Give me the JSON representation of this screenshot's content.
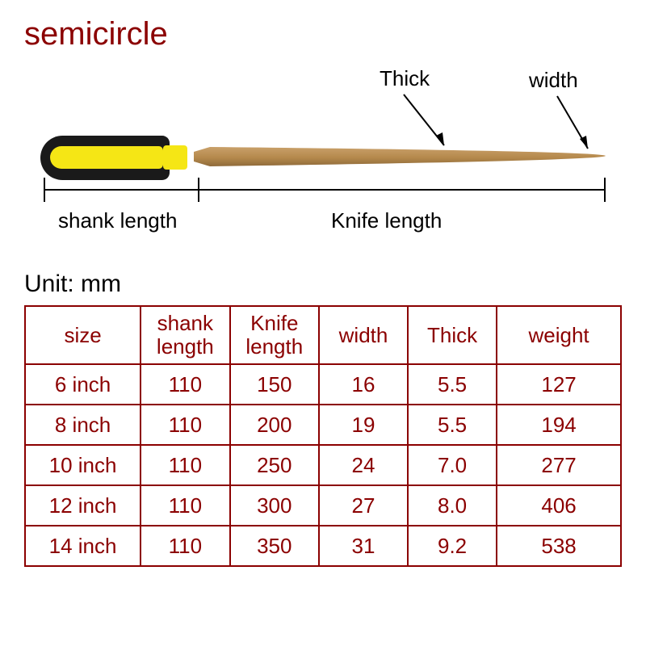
{
  "title": "semicircle",
  "diagram_labels": {
    "thick": "Thick",
    "width": "width",
    "shank_length": "shank length",
    "knife_length": "Knife length"
  },
  "unit_label": "Unit: mm",
  "table": {
    "headers": {
      "size": "size",
      "shank_length": "shank\nlength",
      "knife_length": "Knife\nlength",
      "width": "width",
      "thick": "Thick",
      "weight": "weight"
    },
    "rows": [
      {
        "size": "6 inch",
        "shank": "110",
        "knife": "150",
        "width": "16",
        "thick": "5.5",
        "weight": "127"
      },
      {
        "size": "8 inch",
        "shank": "110",
        "knife": "200",
        "width": "19",
        "thick": "5.5",
        "weight": "194"
      },
      {
        "size": "10 inch",
        "shank": "110",
        "knife": "250",
        "width": "24",
        "thick": "7.0",
        "weight": "277"
      },
      {
        "size": "12 inch",
        "shank": "110",
        "knife": "300",
        "width": "27",
        "thick": "8.0",
        "weight": "406"
      },
      {
        "size": "14 inch",
        "shank": "110",
        "knife": "350",
        "width": "31",
        "thick": "9.2",
        "weight": "538"
      }
    ]
  },
  "colors": {
    "brand": "#8b0000",
    "handle_body": "#1a1a1a",
    "handle_accent": "#f5e615",
    "blade_fill": "#b5894c",
    "blade_tip": "#c99b5e",
    "text": "#000000"
  }
}
